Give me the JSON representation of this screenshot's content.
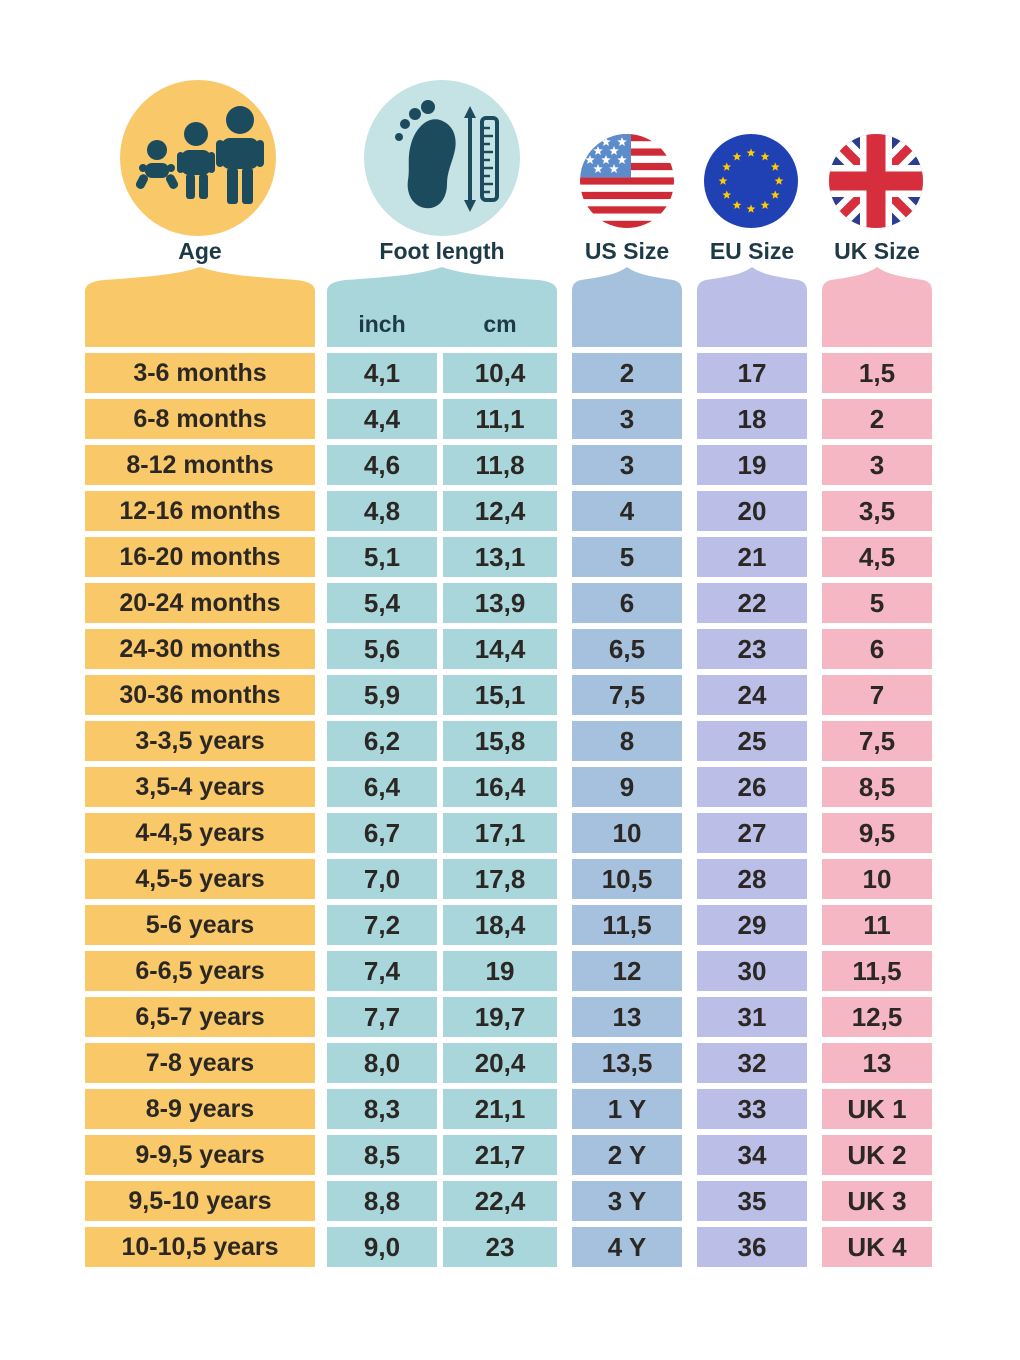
{
  "header": {
    "age_label": "Age",
    "foot_label": "Foot length",
    "inch_label": "inch",
    "cm_label": "cm",
    "us_label": "US Size",
    "eu_label": "EU Size",
    "uk_label": "UK Size",
    "icons": {
      "age": "family-icon",
      "foot": "foot-measure-icon",
      "us": "us-flag-icon",
      "eu": "eu-flag-icon",
      "uk": "uk-flag-icon"
    }
  },
  "colors": {
    "age": "#F9C868",
    "foot_cell": "#A9D6DA",
    "foot_circle": "#C5E2E5",
    "us": "#A6C1DE",
    "eu": "#BBBFE8",
    "uk": "#F5B7C3",
    "icon_dark": "#1D4B5E",
    "label_text": "#1E3A47",
    "cell_text": "#2B2724",
    "us_red": "#CE2B37",
    "us_blue": "#5D8CCB",
    "eu_blue": "#2041B4",
    "eu_star": "#FFCC00",
    "uk_blue": "#2C3D90",
    "uk_red": "#D62E3C"
  },
  "chart_data": {
    "type": "table",
    "columns": [
      "Age",
      "Foot length (inch)",
      "Foot length (cm)",
      "US Size",
      "EU Size",
      "UK Size"
    ],
    "rows": [
      {
        "age": "3-6 months",
        "inch": "4,1",
        "cm": "10,4",
        "us": "2",
        "eu": "17",
        "uk": "1,5"
      },
      {
        "age": "6-8 months",
        "inch": "4,4",
        "cm": "11,1",
        "us": "3",
        "eu": "18",
        "uk": "2"
      },
      {
        "age": "8-12 months",
        "inch": "4,6",
        "cm": "11,8",
        "us": "3",
        "eu": "19",
        "uk": "3"
      },
      {
        "age": "12-16 months",
        "inch": "4,8",
        "cm": "12,4",
        "us": "4",
        "eu": "20",
        "uk": "3,5"
      },
      {
        "age": "16-20 months",
        "inch": "5,1",
        "cm": "13,1",
        "us": "5",
        "eu": "21",
        "uk": "4,5"
      },
      {
        "age": "20-24 months",
        "inch": "5,4",
        "cm": "13,9",
        "us": "6",
        "eu": "22",
        "uk": "5"
      },
      {
        "age": "24-30 months",
        "inch": "5,6",
        "cm": "14,4",
        "us": "6,5",
        "eu": "23",
        "uk": "6"
      },
      {
        "age": "30-36 months",
        "inch": "5,9",
        "cm": "15,1",
        "us": "7,5",
        "eu": "24",
        "uk": "7"
      },
      {
        "age": "3-3,5 years",
        "inch": "6,2",
        "cm": "15,8",
        "us": "8",
        "eu": "25",
        "uk": "7,5"
      },
      {
        "age": "3,5-4 years",
        "inch": "6,4",
        "cm": "16,4",
        "us": "9",
        "eu": "26",
        "uk": "8,5"
      },
      {
        "age": "4-4,5 years",
        "inch": "6,7",
        "cm": "17,1",
        "us": "10",
        "eu": "27",
        "uk": "9,5"
      },
      {
        "age": "4,5-5 years",
        "inch": "7,0",
        "cm": "17,8",
        "us": "10,5",
        "eu": "28",
        "uk": "10"
      },
      {
        "age": "5-6 years",
        "inch": "7,2",
        "cm": "18,4",
        "us": "11,5",
        "eu": "29",
        "uk": "11"
      },
      {
        "age": "6-6,5 years",
        "inch": "7,4",
        "cm": "19",
        "us": "12",
        "eu": "30",
        "uk": "11,5"
      },
      {
        "age": "6,5-7 years",
        "inch": "7,7",
        "cm": "19,7",
        "us": "13",
        "eu": "31",
        "uk": "12,5"
      },
      {
        "age": "7-8 years",
        "inch": "8,0",
        "cm": "20,4",
        "us": "13,5",
        "eu": "32",
        "uk": "13"
      },
      {
        "age": "8-9 years",
        "inch": "8,3",
        "cm": "21,1",
        "us": "1 Y",
        "eu": "33",
        "uk": "UK 1"
      },
      {
        "age": "9-9,5 years",
        "inch": "8,5",
        "cm": "21,7",
        "us": "2 Y",
        "eu": "34",
        "uk": "UK 2"
      },
      {
        "age": "9,5-10 years",
        "inch": "8,8",
        "cm": "22,4",
        "us": "3 Y",
        "eu": "35",
        "uk": "UK 3"
      },
      {
        "age": "10-10,5 years",
        "inch": "9,0",
        "cm": "23",
        "us": "4 Y",
        "eu": "36",
        "uk": "UK 4"
      }
    ]
  }
}
